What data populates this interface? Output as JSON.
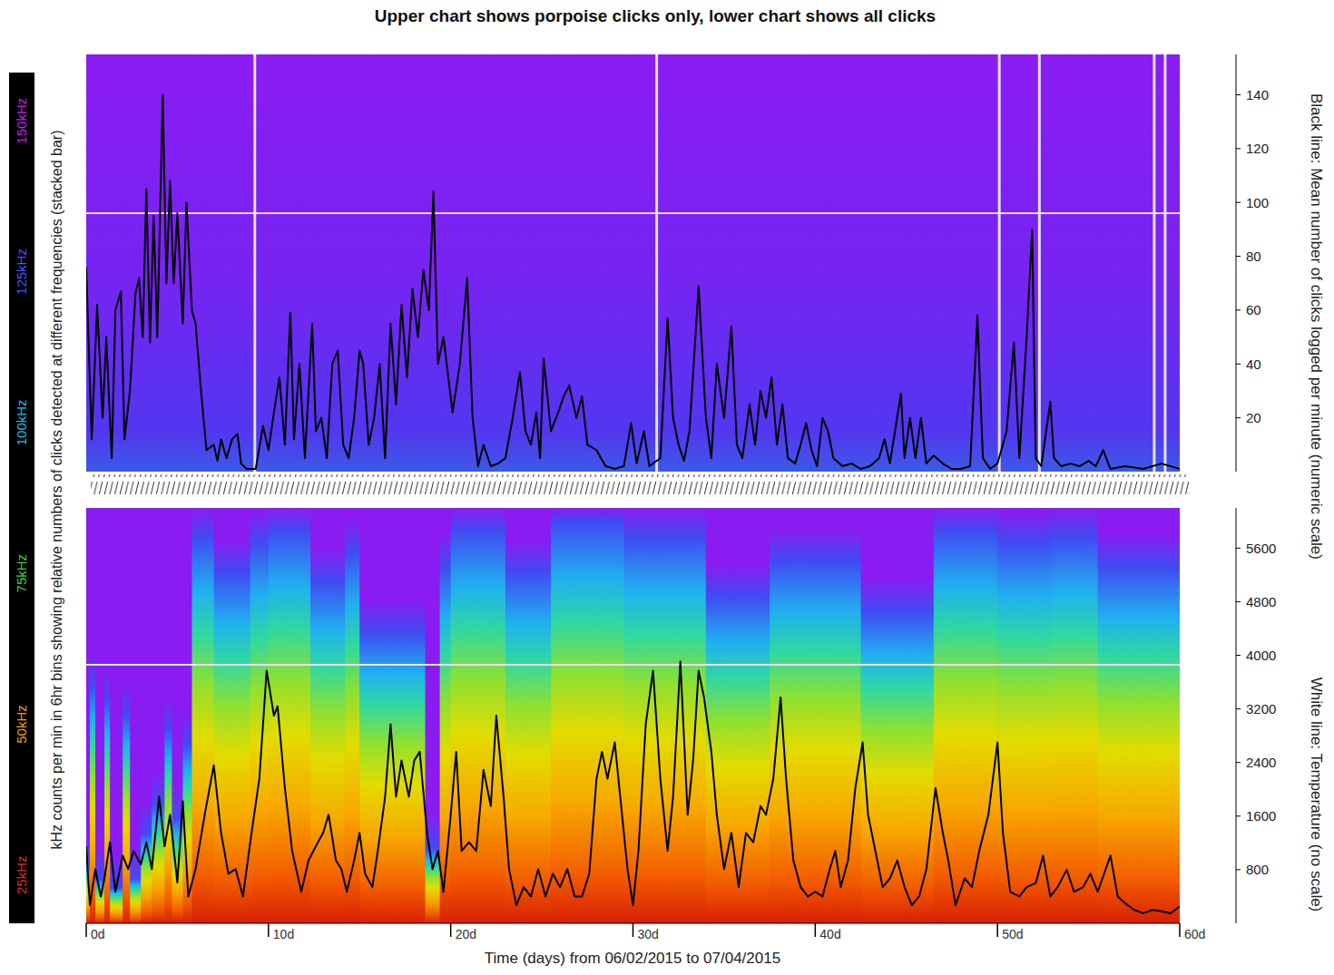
{
  "chart_data": [
    {
      "type": "line",
      "title": "Upper chart shows porpoise clicks only, lower chart shows all clicks",
      "y_label": "Black line: Mean number of clicks logged per minute (numeric scale)",
      "xlim": [
        0,
        60
      ],
      "ylim": [
        0,
        155
      ],
      "yticks": [
        20,
        40,
        60,
        80,
        100,
        120,
        140
      ],
      "tick_labels": "y",
      "gaps": [
        9.25,
        31.3,
        50.1,
        52.3,
        58.6,
        59.2
      ],
      "x": [
        0,
        0.3,
        0.6,
        0.9,
        1.1,
        1.4,
        1.6,
        1.9,
        2.1,
        2.4,
        2.7,
        2.9,
        3.1,
        3.3,
        3.5,
        3.7,
        3.9,
        4.2,
        4.4,
        4.6,
        4.8,
        5.0,
        5.3,
        5.5,
        5.8,
        6.0,
        6.3,
        6.6,
        7.0,
        7.2,
        7.4,
        7.7,
        8.0,
        8.3,
        8.5,
        8.8,
        9.3,
        9.7,
        10.0,
        10.3,
        10.6,
        10.9,
        11.2,
        11.4,
        11.7,
        12.0,
        12.2,
        12.4,
        12.6,
        12.9,
        13.2,
        13.5,
        13.8,
        14.1,
        14.4,
        14.7,
        15.0,
        15.2,
        15.5,
        15.8,
        16.1,
        16.4,
        16.7,
        17.0,
        17.3,
        17.6,
        17.9,
        18.2,
        18.5,
        18.8,
        19.05,
        19.3,
        19.6,
        20.1,
        20.5,
        20.9,
        21.2,
        21.5,
        21.8,
        22.2,
        22.6,
        23.0,
        23.4,
        23.8,
        24.1,
        24.4,
        24.7,
        24.9,
        25.1,
        25.5,
        25.9,
        26.2,
        26.5,
        26.9,
        27.2,
        27.5,
        28.0,
        28.5,
        29.0,
        29.5,
        29.9,
        30.2,
        30.6,
        30.9,
        31.5,
        31.9,
        32.2,
        32.5,
        32.8,
        33.1,
        33.6,
        34.0,
        34.3,
        34.6,
        35.0,
        35.4,
        35.7,
        36.0,
        36.4,
        36.7,
        37.0,
        37.3,
        37.6,
        37.9,
        38.2,
        38.5,
        38.9,
        39.2,
        39.5,
        39.8,
        40.1,
        40.4,
        40.7,
        41.0,
        41.5,
        42.0,
        42.5,
        43.0,
        43.5,
        43.8,
        44.1,
        44.7,
        44.9,
        45.2,
        45.5,
        45.8,
        46.1,
        46.5,
        47.0,
        47.5,
        48.0,
        48.5,
        48.9,
        49.2,
        49.6,
        50.0,
        50.5,
        50.9,
        51.2,
        51.6,
        51.9,
        52.1,
        52.4,
        52.9,
        53.1,
        53.5,
        54.0,
        54.5,
        55.0,
        55.4,
        55.8,
        56.2,
        57.0,
        58.0,
        58.5,
        59.0,
        60.0
      ],
      "series": [
        {
          "color": "#000000",
          "values": [
            76,
            12,
            62,
            20,
            50,
            5,
            60,
            67,
            12,
            30,
            66,
            72,
            50,
            105,
            48,
            95,
            50,
            140,
            70,
            108,
            70,
            96,
            55,
            100,
            60,
            55,
            30,
            8,
            10,
            4,
            12,
            5,
            12,
            14,
            3,
            1,
            1,
            17,
            8,
            22,
            35,
            10,
            59,
            12,
            40,
            5,
            30,
            55,
            15,
            20,
            5,
            40,
            45,
            10,
            5,
            20,
            45,
            40,
            10,
            20,
            40,
            5,
            55,
            25,
            62,
            35,
            68,
            50,
            75,
            60,
            104,
            40,
            50,
            22,
            40,
            72,
            20,
            2,
            10,
            2,
            3,
            5,
            20,
            37,
            15,
            10,
            22,
            5,
            42,
            15,
            22,
            28,
            32,
            20,
            28,
            10,
            8,
            2,
            1,
            2,
            18,
            3,
            15,
            2,
            5,
            57,
            20,
            10,
            4,
            15,
            69,
            20,
            5,
            40,
            20,
            54,
            10,
            5,
            25,
            10,
            30,
            20,
            35,
            10,
            25,
            5,
            3,
            10,
            18,
            8,
            2,
            20,
            15,
            5,
            2,
            3,
            1,
            2,
            5,
            12,
            3,
            29,
            5,
            20,
            5,
            20,
            3,
            6,
            3,
            1,
            1,
            2,
            58,
            5,
            1,
            3,
            15,
            48,
            5,
            50,
            90,
            5,
            2,
            26,
            5,
            2,
            3,
            2,
            4,
            2,
            8,
            1,
            2,
            1,
            2,
            3,
            1
          ]
        },
        {
          "color": "#ffffff",
          "x": [
            0,
            10,
            20,
            30,
            40,
            50,
            60
          ],
          "values": [
            96,
            96,
            96,
            96,
            96,
            96,
            96
          ]
        }
      ],
      "colorbar": {
        "title": "kHz counts per min in 6hr bins showing relative numbers of clicks detected at different frequencies (stacked bar)",
        "range": [
          17,
          158
        ],
        "ticks": [
          {
            "value": 150,
            "label": "150kHz"
          },
          {
            "value": 125,
            "label": "125kHz"
          },
          {
            "value": 100,
            "label": "100kHz"
          },
          {
            "value": 75,
            "label": "75kHz"
          },
          {
            "value": 50,
            "label": "50kHz"
          },
          {
            "value": 25,
            "label": "25kHz"
          }
        ],
        "colors": [
          "#c41ef0",
          "#4a52ff",
          "#19bfe6",
          "#3fcf3f",
          "#eea000",
          "#e02626"
        ]
      }
    },
    {
      "type": "line",
      "x_label": "Time (days) from 06/02/2015 to 07/04/2015",
      "y_label": "White line: Temperature (no scale)",
      "xlim": [
        0,
        60
      ],
      "ylim": [
        0,
        6200
      ],
      "xticks": [
        {
          "value": 0,
          "label": "0d"
        },
        {
          "value": 10,
          "label": "10d"
        },
        {
          "value": 20,
          "label": "20d"
        },
        {
          "value": 30,
          "label": "30d"
        },
        {
          "value": 40,
          "label": "40d"
        },
        {
          "value": 50,
          "label": "50d"
        },
        {
          "value": 60,
          "label": "60d"
        }
      ],
      "yticks": [
        800,
        1600,
        2400,
        3200,
        4000,
        4800,
        5600
      ],
      "x": [
        0,
        0.2,
        0.5,
        0.8,
        1.0,
        1.3,
        1.6,
        2.0,
        2.3,
        2.6,
        3.0,
        3.3,
        3.6,
        4.0,
        4.3,
        4.6,
        5.0,
        5.3,
        5.6,
        6.0,
        6.5,
        7.0,
        7.4,
        7.8,
        8.2,
        8.6,
        9.0,
        9.5,
        9.9,
        10.3,
        10.5,
        10.9,
        11.3,
        11.8,
        12.2,
        12.6,
        13.0,
        13.3,
        13.7,
        14.0,
        14.3,
        14.7,
        15.0,
        15.3,
        15.7,
        16.0,
        16.4,
        16.7,
        17.0,
        17.3,
        17.7,
        18.0,
        18.3,
        18.7,
        19.0,
        19.3,
        19.6,
        20.0,
        20.3,
        20.6,
        21.0,
        21.4,
        21.8,
        22.2,
        22.5,
        22.9,
        23.2,
        23.6,
        24.0,
        24.4,
        24.8,
        25.2,
        25.6,
        26.0,
        26.4,
        26.8,
        27.2,
        27.6,
        28.0,
        28.3,
        28.6,
        29.0,
        29.3,
        29.7,
        30.0,
        30.3,
        30.7,
        31.1,
        31.5,
        31.9,
        32.2,
        32.6,
        33.0,
        33.3,
        33.6,
        33.9,
        34.3,
        34.6,
        35.0,
        35.4,
        35.8,
        36.2,
        36.6,
        37.0,
        37.3,
        37.7,
        38.1,
        38.4,
        38.8,
        39.2,
        39.6,
        40.0,
        40.4,
        40.8,
        41.1,
        41.4,
        41.8,
        42.2,
        42.6,
        42.9,
        43.3,
        43.7,
        44.1,
        44.5,
        44.9,
        45.3,
        45.7,
        46.1,
        46.6,
        47.0,
        47.3,
        47.7,
        48.2,
        48.6,
        49.0,
        49.5,
        50.0,
        50.3,
        50.7,
        51.2,
        51.6,
        52.1,
        52.5,
        52.9,
        53.3,
        53.8,
        54.2,
        54.7,
        55.1,
        55.5,
        56.2,
        56.6,
        57.0,
        57.5,
        58.0,
        58.5,
        59.0,
        59.5,
        60.0
      ],
      "series": [
        {
          "color": "#000000",
          "values": [
            1150,
            270,
            810,
            400,
            670,
            1210,
            470,
            1010,
            810,
            1080,
            880,
            1210,
            810,
            1890,
            1150,
            1620,
            610,
            1820,
            400,
            810,
            1620,
            2360,
            1350,
            740,
            810,
            400,
            1210,
            2160,
            3770,
            3100,
            3240,
            2020,
            1080,
            470,
            940,
            1150,
            1350,
            1620,
            940,
            810,
            470,
            940,
            1350,
            740,
            540,
            1080,
            1890,
            2970,
            1890,
            2430,
            1890,
            2430,
            2560,
            1350,
            810,
            1080,
            470,
            1620,
            2560,
            1080,
            1210,
            1080,
            2290,
            1750,
            3100,
            1890,
            810,
            270,
            540,
            400,
            810,
            400,
            740,
            540,
            810,
            400,
            400,
            740,
            2160,
            2560,
            2160,
            2700,
            1890,
            810,
            270,
            1080,
            2970,
            3770,
            2160,
            1080,
            1890,
            3910,
            1620,
            2430,
            3770,
            3370,
            2560,
            1620,
            810,
            1350,
            540,
            1350,
            1210,
            1750,
            1620,
            2160,
            3370,
            2160,
            940,
            540,
            400,
            470,
            400,
            810,
            1080,
            540,
            940,
            2020,
            2700,
            1620,
            1080,
            540,
            670,
            940,
            540,
            270,
            400,
            810,
            2020,
            1350,
            940,
            270,
            670,
            540,
            1080,
            1620,
            2700,
            1350,
            470,
            400,
            540,
            600,
            1010,
            400,
            540,
            800,
            470,
            540,
            740,
            470,
            1010,
            400,
            300,
            200,
            150,
            200,
            180,
            150,
            250
          ]
        },
        {
          "color": "#ffffff",
          "x": [
            0,
            10,
            20,
            30,
            40,
            50,
            60
          ],
          "values": [
            3860,
            3860,
            3860,
            3860,
            3860,
            3860,
            3860
          ]
        }
      ],
      "spectrogram": {
        "range": [
          20,
          160
        ],
        "bins": [
          0,
          0.2,
          0.5,
          1.0,
          1.3,
          2.0,
          2.4,
          3.0,
          3.6,
          4.3,
          4.7,
          5.3,
          5.8,
          7,
          9,
          10,
          12.3,
          14.2,
          15,
          18.6,
          19.4,
          20,
          23,
          25.5,
          29.5,
          34,
          37.5,
          42.5,
          46.5,
          50,
          53,
          55.5,
          60
        ],
        "values": [
          40,
          100,
          35,
          95,
          32,
          90,
          35,
          50,
          60,
          85,
          55,
          80,
          150,
          138,
          148,
          152,
          135,
          145,
          118,
          45,
          140,
          152,
          138,
          155,
          150,
          130,
          142,
          125,
          152,
          148,
          150,
          140
        ]
      }
    }
  ]
}
